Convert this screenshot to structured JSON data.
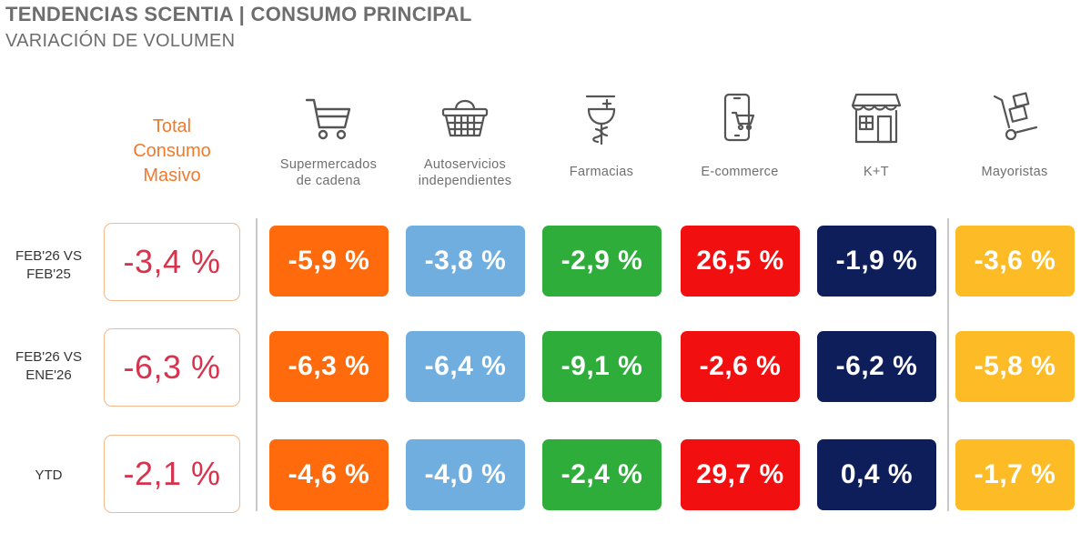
{
  "header": {
    "title": "TENDENCIAS SCENTIA   | CONSUMO PRINCIPAL",
    "subtitle": "VARIACIÓN DE VOLUMEN"
  },
  "total_header": [
    "Total",
    "Consumo",
    "Masivo"
  ],
  "columns": [
    {
      "icon": "shopping-cart-icon",
      "label_lines": [
        "Supermercados",
        "de cadena"
      ],
      "color": "#ff6a0c"
    },
    {
      "icon": "basket-icon",
      "label_lines": [
        "Autoservicios",
        "independientes"
      ],
      "color": "#70aee0"
    },
    {
      "icon": "pharmacy-icon",
      "label_lines": [
        "Farmacias"
      ],
      "color": "#2fad3b"
    },
    {
      "icon": "mobile-cart-icon",
      "label_lines": [
        "E-commerce"
      ],
      "color": "#f20f0f"
    },
    {
      "icon": "storefront-icon",
      "label_lines": [
        "K+T"
      ],
      "color": "#0e1e5a"
    },
    {
      "icon": "hand-truck-icon",
      "label_lines": [
        "Mayoristas"
      ],
      "color": "#fdbb26"
    }
  ],
  "rows": [
    {
      "label_lines": [
        "FEB'26 VS",
        "FEB'25"
      ],
      "total": "-3,4 %",
      "values": [
        "-5,9 %",
        "-3,8 %",
        "-2,9 %",
        "26,5 %",
        "-1,9 %",
        "-3,6 %"
      ]
    },
    {
      "label_lines": [
        "FEB'26 VS",
        "ENE'26"
      ],
      "total": "-6,3 %",
      "values": [
        "-6,3 %",
        "-6,4 %",
        "-9,1 %",
        "-2,6 %",
        "-6,2 %",
        "-5,8 %"
      ]
    },
    {
      "label_lines": [
        "YTD"
      ],
      "total": "-2,1 %",
      "values": [
        "-4,6 %",
        "-4,0 %",
        "-2,4 %",
        "29,7 %",
        "0,4 %",
        "-1,7 %"
      ]
    }
  ],
  "chart_data": {
    "type": "table",
    "title": "TENDENCIAS SCENTIA   | CONSUMO PRINCIPAL",
    "subtitle": "VARIACIÓN DE VOLUMEN",
    "categories": [
      "Total Consumo Masivo",
      "Supermercados de cadena",
      "Autoservicios independientes",
      "Farmacias",
      "E-commerce",
      "K+T",
      "Mayoristas"
    ],
    "series": [
      {
        "name": "FEB'26 VS FEB'25",
        "values": [
          -3.4,
          -5.9,
          -3.8,
          -2.9,
          26.5,
          -1.9,
          -3.6
        ]
      },
      {
        "name": "FEB'26 VS ENE'26",
        "values": [
          -6.3,
          -6.3,
          -6.4,
          -9.1,
          -2.6,
          -6.2,
          -5.8
        ]
      },
      {
        "name": "YTD",
        "values": [
          -2.1,
          -4.6,
          -4.0,
          -2.4,
          29.7,
          0.4,
          -1.7
        ]
      }
    ],
    "unit": "%"
  }
}
